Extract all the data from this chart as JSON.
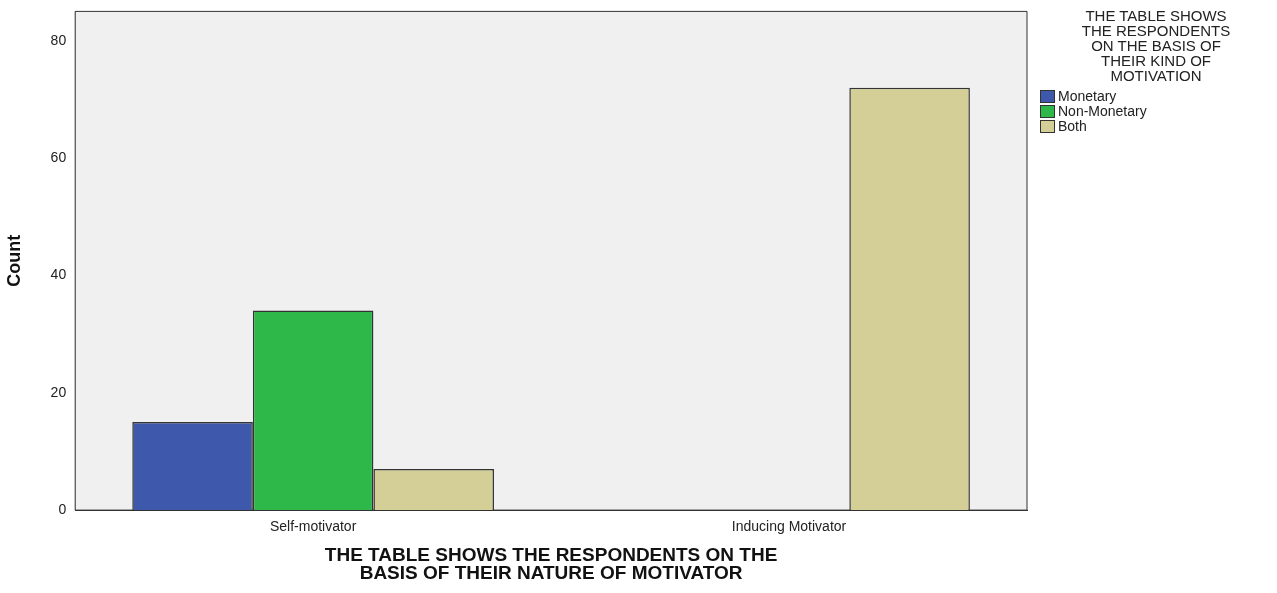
{
  "chart_data": {
    "type": "bar",
    "xlabel": "THE TABLE SHOWS THE RESPONDENTS ON THE BASIS OF THEIR NATURE OF MOTIVATOR",
    "ylabel": "Count",
    "legend_title": "THE TABLE SHOWS THE RESPONDENTS ON THE BASIS OF THEIR KIND OF MOTIVATION",
    "categories": [
      "Self-motivator",
      "Inducing Motivator"
    ],
    "series": [
      {
        "name": "Monetary",
        "color": "#3e58ac",
        "values": [
          15,
          null
        ]
      },
      {
        "name": "Non-Monetary",
        "color": "#2fb84a",
        "values": [
          34,
          null
        ]
      },
      {
        "name": "Both",
        "color": "#d4cf96",
        "values": [
          7,
          72
        ]
      }
    ],
    "ylim": [
      0,
      85
    ],
    "yticks": [
      0,
      20,
      40,
      60,
      80
    ],
    "grid": false,
    "legend": "right"
  }
}
